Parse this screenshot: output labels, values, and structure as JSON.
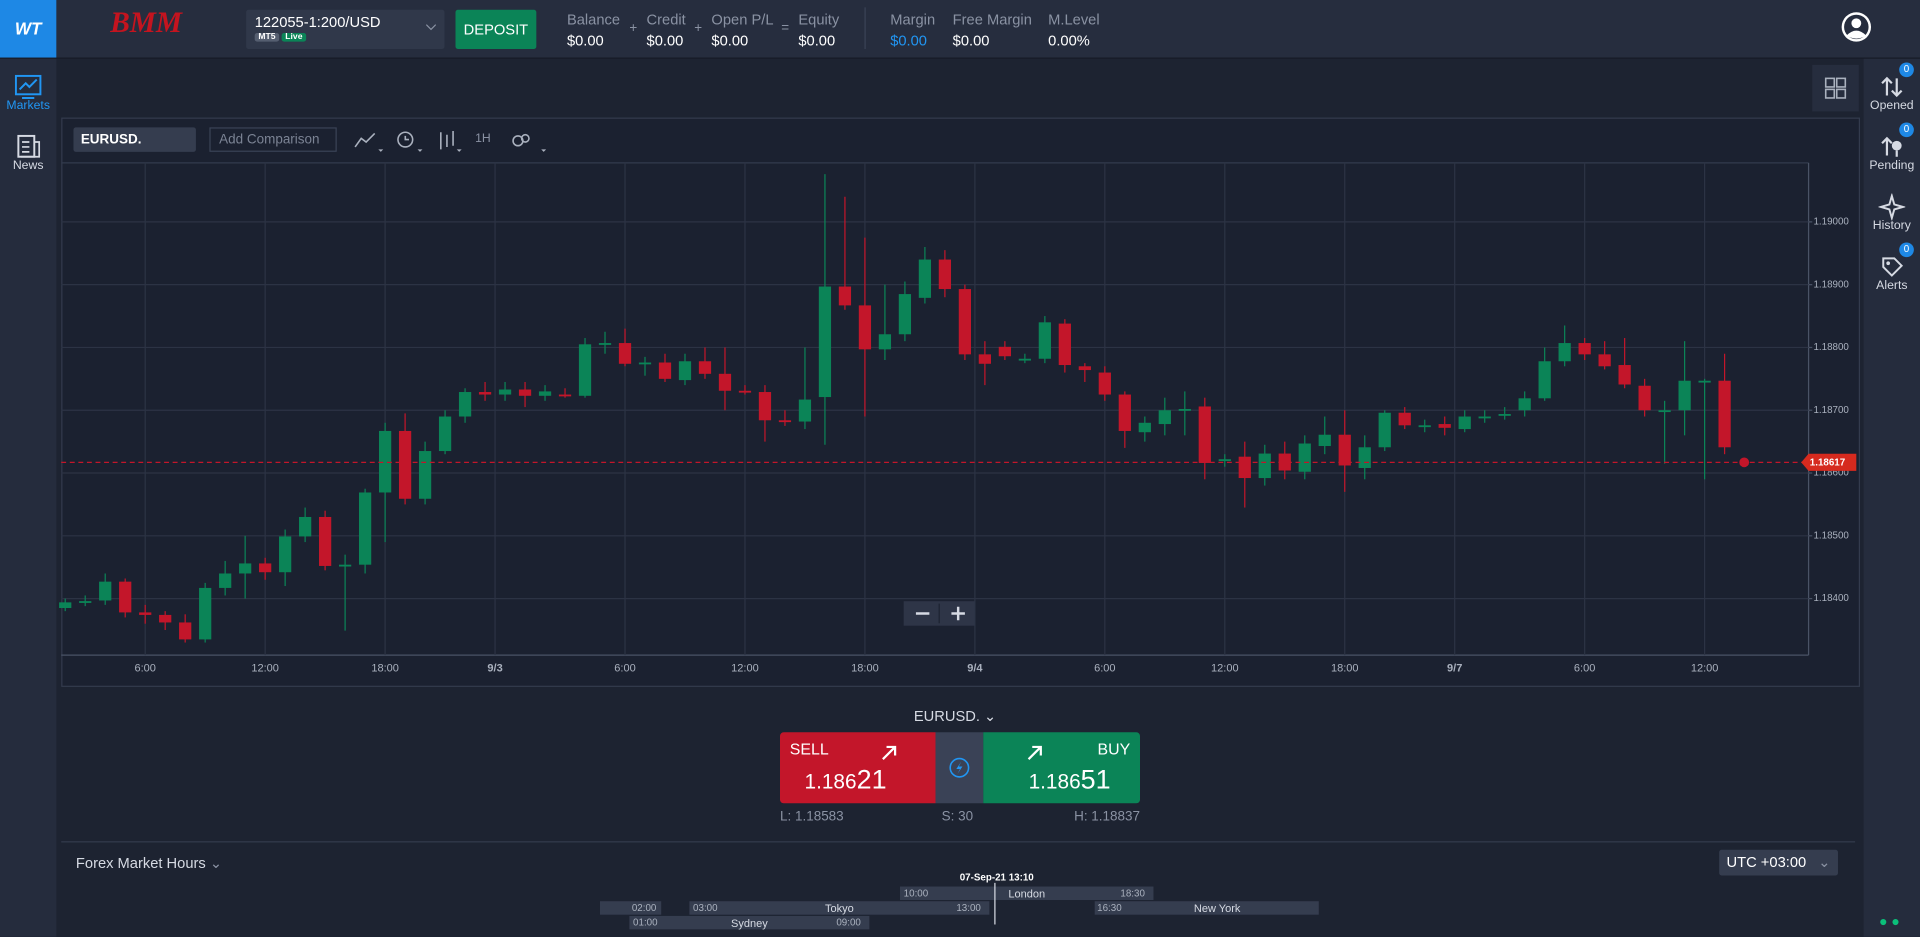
{
  "header": {
    "logo": "WT",
    "brand": "BMM",
    "account": "122055-1:200/USD",
    "platform": "MT5",
    "status": "Live",
    "deposit": "DEPOSIT",
    "stats": [
      {
        "label": "Balance",
        "value": "$0.00"
      },
      {
        "op": "+",
        "label": "Credit",
        "value": "$0.00"
      },
      {
        "op": "+",
        "label": "Open P/L",
        "value": "$0.00"
      },
      {
        "op": "=",
        "label": "Equity",
        "value": "$0.00"
      },
      {
        "label": "Margin",
        "value": "$0.00"
      },
      {
        "label": "Free Margin",
        "value": "$0.00"
      },
      {
        "label": "M.Level",
        "value": "0.00%"
      }
    ]
  },
  "left_nav": [
    {
      "label": "Markets"
    },
    {
      "label": "News"
    }
  ],
  "right_nav": [
    {
      "label": "Opened",
      "badge": 0
    },
    {
      "label": "Pending",
      "badge": 0
    },
    {
      "label": "History"
    },
    {
      "label": "Alerts",
      "badge": 0
    }
  ],
  "toolbar": {
    "symbol": "EURUSD.",
    "comparison": "Add Comparison",
    "interval": "1H"
  },
  "chart_data": {
    "type": "candlestick",
    "up_color": "#0b8457",
    "down_color": "#c3162a",
    "grid": true,
    "open": [
      1.18385,
      1.18396,
      1.18397,
      1.18427,
      1.18378,
      1.18374,
      1.18362,
      1.18335,
      1.18417,
      1.1844,
      1.18456,
      1.18442,
      1.18499,
      1.1853,
      1.18452,
      1.18454,
      1.18569,
      1.18667,
      1.18559,
      1.18635,
      1.1869,
      1.18729,
      1.18725,
      1.18733,
      1.18723,
      1.18725,
      1.18723,
      1.18805,
      1.18807,
      1.18774,
      1.18776,
      1.18748,
      1.18778,
      1.18758,
      1.18731,
      1.18729,
      1.18684,
      1.18682,
      1.18721,
      1.18897,
      1.18867,
      1.18797,
      1.18821,
      1.18879,
      1.1894,
      1.18893,
      1.18789,
      1.18801,
      1.18782,
      1.18782,
      1.18838,
      1.1877,
      1.1876,
      1.18725,
      1.18665,
      1.18678,
      1.187,
      1.18706,
      1.18622,
      1.18626,
      1.18592,
      1.18631,
      1.18602,
      1.18643,
      1.18661,
      1.18608,
      1.18641,
      1.18696,
      1.18676,
      1.18678,
      1.1867,
      1.1869,
      1.18694,
      1.187,
      1.18719,
      1.18778,
      1.18807,
      1.18789,
      1.18772,
      1.18739,
      1.187,
      1.187,
      1.18747,
      1.18747
    ],
    "high": [
      1.184,
      1.18405,
      1.1844,
      1.18432,
      1.1839,
      1.1838,
      1.18375,
      1.18425,
      1.1846,
      1.185,
      1.18465,
      1.1851,
      1.18545,
      1.1854,
      1.1847,
      1.18575,
      1.1868,
      1.18695,
      1.1865,
      1.187,
      1.18735,
      1.18745,
      1.18745,
      1.18745,
      1.1874,
      1.18735,
      1.18815,
      1.18825,
      1.1883,
      1.18785,
      1.1879,
      1.1879,
      1.188,
      1.188,
      1.1874,
      1.1874,
      1.187,
      1.188,
      1.19076,
      1.1904,
      1.18975,
      1.189,
      1.18905,
      1.1896,
      1.18955,
      1.189,
      1.1881,
      1.1881,
      1.1879,
      1.1885,
      1.18845,
      1.18775,
      1.1877,
      1.1873,
      1.1869,
      1.1872,
      1.1873,
      1.1872,
      1.1863,
      1.1865,
      1.18645,
      1.1865,
      1.1866,
      1.1869,
      1.187,
      1.1866,
      1.187,
      1.18705,
      1.18685,
      1.1869,
      1.187,
      1.187,
      1.18705,
      1.1873,
      1.188,
      1.18835,
      1.18815,
      1.1881,
      1.18815,
      1.1875,
      1.18715,
      1.1881,
      1.1875,
      1.1879
    ],
    "low": [
      1.1838,
      1.18388,
      1.1839,
      1.1837,
      1.1836,
      1.1835,
      1.1833,
      1.1833,
      1.18405,
      1.184,
      1.1843,
      1.1842,
      1.1849,
      1.18445,
      1.18349,
      1.1844,
      1.1849,
      1.1855,
      1.1855,
      1.1863,
      1.1868,
      1.18715,
      1.18715,
      1.18705,
      1.18715,
      1.1872,
      1.1872,
      1.1879,
      1.1877,
      1.18755,
      1.18745,
      1.1874,
      1.1875,
      1.187,
      1.18725,
      1.1865,
      1.18675,
      1.1867,
      1.18645,
      1.1886,
      1.1869,
      1.1878,
      1.1881,
      1.1887,
      1.1888,
      1.1878,
      1.1874,
      1.1878,
      1.18775,
      1.18775,
      1.1876,
      1.18745,
      1.18715,
      1.1864,
      1.1865,
      1.1866,
      1.1866,
      1.1859,
      1.1861,
      1.18545,
      1.1858,
      1.1859,
      1.1859,
      1.1863,
      1.1857,
      1.1859,
      1.18635,
      1.1867,
      1.18665,
      1.1866,
      1.18665,
      1.1868,
      1.18685,
      1.1869,
      1.18715,
      1.1877,
      1.1878,
      1.18765,
      1.18735,
      1.1869,
      1.18615,
      1.1866,
      1.1859,
      1.1863
    ],
    "close": [
      1.18394,
      1.18396,
      1.18427,
      1.18378,
      1.18374,
      1.18362,
      1.18335,
      1.18417,
      1.1844,
      1.18456,
      1.18442,
      1.18499,
      1.1853,
      1.18452,
      1.18454,
      1.18569,
      1.18667,
      1.18559,
      1.18635,
      1.1869,
      1.18729,
      1.18725,
      1.18733,
      1.18723,
      1.1873,
      1.18723,
      1.18805,
      1.18807,
      1.18774,
      1.18776,
      1.1875,
      1.18778,
      1.18758,
      1.18731,
      1.18729,
      1.18684,
      1.18682,
      1.18717,
      1.18897,
      1.18867,
      1.18797,
      1.18821,
      1.18885,
      1.1894,
      1.18893,
      1.18789,
      1.18774,
      1.18786,
      1.18782,
      1.1884,
      1.18772,
      1.18764,
      1.18725,
      1.18667,
      1.1868,
      1.187,
      1.18702,
      1.18616,
      1.18622,
      1.18592,
      1.18631,
      1.18604,
      1.18647,
      1.18661,
      1.18612,
      1.18641,
      1.18696,
      1.18676,
      1.18676,
      1.18672,
      1.1869,
      1.1869,
      1.18694,
      1.18719,
      1.18778,
      1.18807,
      1.18789,
      1.1877,
      1.18741,
      1.187,
      1.187,
      1.18747,
      1.18747,
      1.18641
    ],
    "xlim": [
      -0.2,
      87.2
    ],
    "xticks": [
      {
        "value": 4,
        "label": "6:00"
      },
      {
        "value": 10,
        "label": "12:00"
      },
      {
        "value": 16,
        "label": "18:00"
      },
      {
        "value": 21.5,
        "label": "9/3"
      },
      {
        "value": 28,
        "label": "6:00"
      },
      {
        "value": 34,
        "label": "12:00"
      },
      {
        "value": 40,
        "label": "18:00"
      },
      {
        "value": 45.5,
        "label": "9/4"
      },
      {
        "value": 52,
        "label": "6:00"
      },
      {
        "value": 58,
        "label": "12:00"
      },
      {
        "value": 64,
        "label": "18:00"
      },
      {
        "value": 69.5,
        "label": "9/7"
      },
      {
        "value": 76,
        "label": "6:00"
      },
      {
        "value": 82,
        "label": "12:00"
      }
    ],
    "ylim": [
      1.1831,
      1.19094
    ],
    "yticks": [
      {
        "value": 1.184,
        "label": "1.18400"
      },
      {
        "value": 1.185,
        "label": "1.18500"
      },
      {
        "value": 1.186,
        "label": "1.18600"
      },
      {
        "value": 1.187,
        "label": "1.18700"
      },
      {
        "value": 1.188,
        "label": "1.18800"
      },
      {
        "value": 1.189,
        "label": "1.18900"
      },
      {
        "value": 1.19,
        "label": "1.19000"
      }
    ],
    "current_price": 1.18617
  },
  "trade": {
    "symbol": "EURUSD.",
    "sell": {
      "label": "SELL",
      "price_main": "1.186",
      "price_pips": "21"
    },
    "buy": {
      "label": "BUY",
      "price_main": "1.186",
      "price_pips": "51"
    },
    "low": "L: 1.18583",
    "spread": "S: 30",
    "high": "H: 1.18837"
  },
  "market_hours": {
    "title": "Forex Market Hours",
    "timezone": "UTC +03:00",
    "now": "07-Sep-21 13:10",
    "sessions": [
      {
        "name": "London",
        "open": "10:00",
        "close": "18:30"
      },
      {
        "name": "Tokyo",
        "open": "03:00",
        "close": "13:00"
      },
      {
        "name": "New York",
        "open": "16:30",
        "close": "02:00"
      },
      {
        "name": "Sydney",
        "open": "01:00",
        "close": "09:00"
      }
    ]
  }
}
